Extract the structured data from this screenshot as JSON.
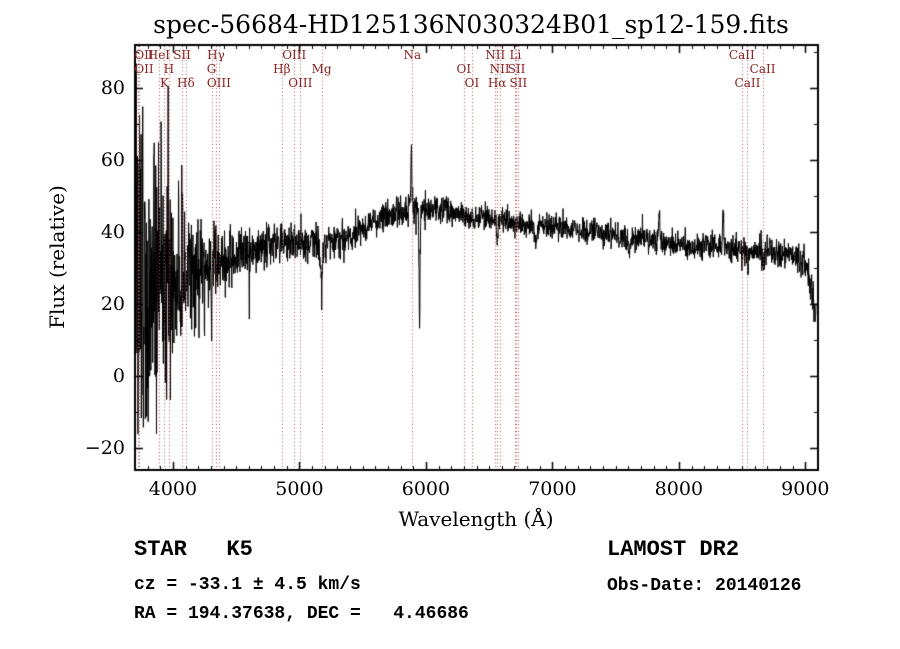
{
  "window": {
    "background": "#ffffff"
  },
  "chart_data": {
    "type": "line",
    "title": "spec-56684-HD125136N030324B01_sp12-159.fits",
    "xlabel": "Wavelength (Å)",
    "ylabel": "Flux (relative)",
    "xlim": [
      3700,
      9100
    ],
    "ylim": [
      -26,
      92
    ],
    "xticks": [
      4000,
      5000,
      6000,
      7000,
      8000,
      9000
    ],
    "yticks": [
      -20,
      0,
      20,
      40,
      60,
      80
    ],
    "x_minor_step": 100,
    "y_minor_step": 10,
    "grid": false,
    "legend": "none",
    "series_color": "#000000",
    "line_marker_color": "#aa5050",
    "line_label_color": "#8b2222",
    "continuum": [
      [
        3700,
        18
      ],
      [
        3760,
        19
      ],
      [
        3820,
        21
      ],
      [
        3900,
        23
      ],
      [
        3980,
        25
      ],
      [
        4060,
        27
      ],
      [
        4150,
        28
      ],
      [
        4250,
        29
      ],
      [
        4350,
        31
      ],
      [
        4450,
        32
      ],
      [
        4550,
        34
      ],
      [
        4650,
        35
      ],
      [
        4750,
        36
      ],
      [
        4850,
        37
      ],
      [
        4950,
        37
      ],
      [
        5050,
        37
      ],
      [
        5150,
        37
      ],
      [
        5250,
        37
      ],
      [
        5350,
        38
      ],
      [
        5450,
        40
      ],
      [
        5550,
        42
      ],
      [
        5650,
        44
      ],
      [
        5750,
        45
      ],
      [
        5850,
        46
      ],
      [
        5950,
        47
      ],
      [
        6050,
        46
      ],
      [
        6150,
        46
      ],
      [
        6250,
        45
      ],
      [
        6350,
        44
      ],
      [
        6450,
        44
      ],
      [
        6550,
        43
      ],
      [
        6650,
        43
      ],
      [
        6750,
        42
      ],
      [
        6900,
        42
      ],
      [
        7100,
        41
      ],
      [
        7300,
        40
      ],
      [
        7500,
        39
      ],
      [
        7700,
        38
      ],
      [
        7900,
        37
      ],
      [
        8100,
        36
      ],
      [
        8300,
        36
      ],
      [
        8500,
        35
      ],
      [
        8700,
        34
      ],
      [
        8900,
        34
      ],
      [
        9000,
        31
      ],
      [
        9040,
        25
      ],
      [
        9080,
        17
      ]
    ],
    "noise_sigma": [
      [
        3700,
        22
      ],
      [
        3760,
        21
      ],
      [
        3820,
        16
      ],
      [
        3900,
        14
      ],
      [
        3980,
        13
      ],
      [
        4060,
        11
      ],
      [
        4150,
        9
      ],
      [
        4250,
        6
      ],
      [
        4350,
        5
      ],
      [
        4500,
        3.5
      ],
      [
        4700,
        3
      ],
      [
        5000,
        2.5
      ],
      [
        5400,
        2.2
      ],
      [
        5900,
        2
      ],
      [
        6500,
        1.7
      ],
      [
        7000,
        1.6
      ],
      [
        7600,
        1.7
      ],
      [
        8200,
        1.8
      ],
      [
        8800,
        2
      ],
      [
        9080,
        2.5
      ]
    ],
    "features": [
      {
        "x": 3706,
        "dy": 55,
        "w": 2
      },
      {
        "x": 3725,
        "dy": -30,
        "w": 2
      },
      {
        "x": 3760,
        "dy": 45,
        "w": 2
      },
      {
        "x": 3800,
        "dy": -28,
        "w": 2
      },
      {
        "x": 3852,
        "dy": 42,
        "w": 2
      },
      {
        "x": 3906,
        "dy": 38,
        "w": 2
      },
      {
        "x": 3962,
        "dy": 30,
        "w": 2
      },
      {
        "x": 4046,
        "dy": 28,
        "w": 2
      },
      {
        "x": 4078,
        "dy": 20,
        "w": 3
      },
      {
        "x": 4305,
        "dy": -8,
        "w": 8
      },
      {
        "x": 5175,
        "dy": -9,
        "w": 10
      },
      {
        "x": 5885,
        "dy": 16,
        "w": 5
      },
      {
        "x": 5950,
        "dy": -33,
        "w": 4
      },
      {
        "x": 6563,
        "dy": -6,
        "w": 4
      },
      {
        "x": 6870,
        "dy": -4,
        "w": 10
      },
      {
        "x": 7605,
        "dy": -5,
        "w": 8
      },
      {
        "x": 7845,
        "dy": 8,
        "w": 5
      },
      {
        "x": 8350,
        "dy": 10,
        "w": 5
      },
      {
        "x": 8500,
        "dy": -4,
        "w": 4
      },
      {
        "x": 8545,
        "dy": -4,
        "w": 4
      },
      {
        "x": 8665,
        "dy": -4,
        "w": 4
      },
      {
        "x": 8720,
        "dy": 6,
        "w": 4
      }
    ],
    "spectral_lines": [
      {
        "label": "OII",
        "wavelength": 3727,
        "row": 0
      },
      {
        "label": "OII",
        "wavelength": 3730,
        "row": 1
      },
      {
        "label": "HeI",
        "wavelength": 3889,
        "row": 0
      },
      {
        "label": "K",
        "wavelength": 3933,
        "row": 2
      },
      {
        "label": "H",
        "wavelength": 3968,
        "row": 1
      },
      {
        "label": "SII",
        "wavelength": 4072,
        "row": 0
      },
      {
        "label": "Hδ",
        "wavelength": 4102,
        "row": 2
      },
      {
        "label": "G",
        "wavelength": 4305,
        "row": 1
      },
      {
        "label": "Hγ",
        "wavelength": 4340,
        "row": 0
      },
      {
        "label": "OIII",
        "wavelength": 4363,
        "row": 2
      },
      {
        "label": "Hβ",
        "wavelength": 4861,
        "row": 1
      },
      {
        "label": "OIII",
        "wavelength": 4959,
        "row": 0
      },
      {
        "label": "OIII",
        "wavelength": 5007,
        "row": 2
      },
      {
        "label": "Mg",
        "wavelength": 5175,
        "row": 1
      },
      {
        "label": "Na",
        "wavelength": 5893,
        "row": 0
      },
      {
        "label": "OI",
        "wavelength": 6300,
        "row": 1
      },
      {
        "label": "OI",
        "wavelength": 6364,
        "row": 2
      },
      {
        "label": "NII",
        "wavelength": 6548,
        "row": 0
      },
      {
        "label": "Hα",
        "wavelength": 6563,
        "row": 2
      },
      {
        "label": "NII",
        "wavelength": 6583,
        "row": 1
      },
      {
        "label": "Li",
        "wavelength": 6708,
        "row": 0
      },
      {
        "label": "SII",
        "wavelength": 6716,
        "row": 1
      },
      {
        "label": "SII",
        "wavelength": 6731,
        "row": 2
      },
      {
        "label": "CaII",
        "wavelength": 8498,
        "row": 0
      },
      {
        "label": "CaII",
        "wavelength": 8542,
        "row": 2
      },
      {
        "label": "CaII",
        "wavelength": 8662,
        "row": 1
      }
    ]
  },
  "footer": {
    "classification": "STAR   K5",
    "survey": "LAMOST DR2",
    "cz": "cz = -33.1 ± 4.5 km/s",
    "obs_date": "Obs-Date: 20140126",
    "coords": "RA = 194.37638, DEC =   4.46686"
  }
}
